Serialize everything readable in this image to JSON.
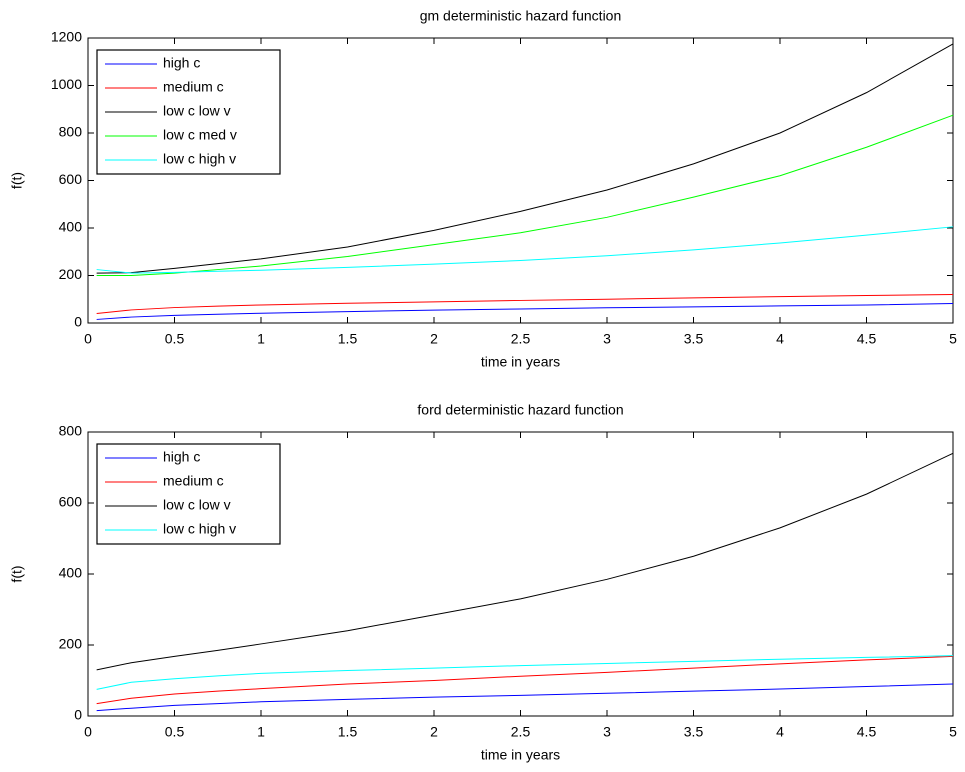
{
  "chart_data": [
    {
      "type": "line",
      "title": "gm deterministic hazard function",
      "xlabel": "time in years",
      "ylabel": "f(t)",
      "x": [
        0.05,
        0.25,
        0.5,
        0.75,
        1,
        1.5,
        2,
        2.5,
        3,
        3.5,
        4,
        4.5,
        5
      ],
      "series": [
        {
          "name": "high c",
          "color": "#0000ff",
          "values": [
            15,
            25,
            32,
            37,
            41,
            48,
            54,
            59,
            64,
            68,
            72,
            76,
            82
          ]
        },
        {
          "name": "medium c",
          "color": "#ff0000",
          "values": [
            40,
            55,
            65,
            71,
            76,
            83,
            89,
            95,
            100,
            106,
            111,
            116,
            120
          ]
        },
        {
          "name": "low c low v",
          "color": "#000000",
          "values": [
            210,
            212,
            230,
            250,
            270,
            320,
            390,
            470,
            560,
            670,
            800,
            970,
            1175
          ]
        },
        {
          "name": "low c med v",
          "color": "#00ff00",
          "values": [
            200,
            200,
            210,
            225,
            240,
            280,
            330,
            380,
            445,
            530,
            620,
            740,
            875
          ]
        },
        {
          "name": "low c high v",
          "color": "#00ffff",
          "values": [
            225,
            210,
            213,
            218,
            222,
            234,
            248,
            263,
            283,
            308,
            337,
            370,
            405
          ]
        }
      ],
      "xlim": [
        0,
        5
      ],
      "ylim": [
        0,
        1200
      ],
      "xticks": [
        0,
        0.5,
        1,
        1.5,
        2,
        2.5,
        3,
        3.5,
        4,
        4.5,
        5
      ],
      "yticks": [
        0,
        200,
        400,
        600,
        800,
        1000,
        1200
      ],
      "legend": "upper left"
    },
    {
      "type": "line",
      "title": "ford deterministic hazard function",
      "xlabel": "time in years",
      "ylabel": "f(t)",
      "x": [
        0.05,
        0.25,
        0.5,
        0.75,
        1,
        1.5,
        2,
        2.5,
        3,
        3.5,
        4,
        4.5,
        5
      ],
      "series": [
        {
          "name": "high c",
          "color": "#0000ff",
          "values": [
            15,
            22,
            30,
            35,
            40,
            47,
            53,
            58,
            64,
            70,
            76,
            83,
            90
          ]
        },
        {
          "name": "medium c",
          "color": "#ff0000",
          "values": [
            35,
            50,
            62,
            70,
            77,
            90,
            100,
            112,
            123,
            135,
            147,
            158,
            168
          ]
        },
        {
          "name": "low c low v",
          "color": "#000000",
          "values": [
            130,
            150,
            168,
            185,
            203,
            240,
            285,
            330,
            385,
            450,
            530,
            625,
            740
          ]
        },
        {
          "name": "low c high v",
          "color": "#00ffff",
          "values": [
            75,
            95,
            105,
            113,
            120,
            128,
            135,
            142,
            148,
            154,
            160,
            165,
            170
          ]
        }
      ],
      "xlim": [
        0,
        5
      ],
      "ylim": [
        0,
        800
      ],
      "xticks": [
        0,
        0.5,
        1,
        1.5,
        2,
        2.5,
        3,
        3.5,
        4,
        4.5,
        5
      ],
      "yticks": [
        0,
        200,
        400,
        600,
        800
      ],
      "legend": "upper left"
    }
  ]
}
